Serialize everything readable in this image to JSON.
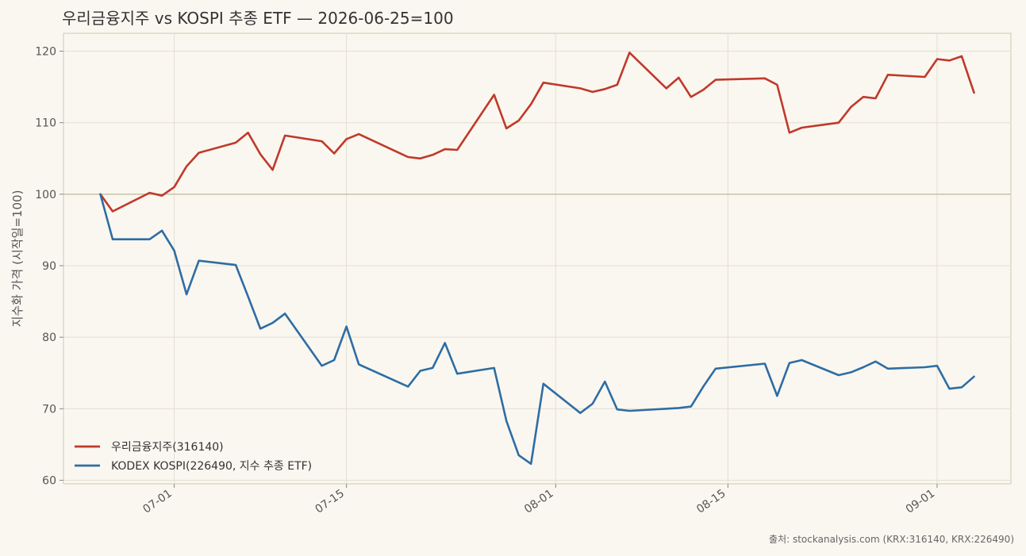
{
  "chart_data": {
    "type": "line",
    "title": "우리금융지주 vs KOSPI 추종 ETF — 2026-06-25=100",
    "xlabel": "",
    "ylabel": "지수화 가격 (시작일=100)",
    "ylim": [
      59.5,
      122.5
    ],
    "yticks": [
      60,
      70,
      80,
      90,
      100,
      110,
      120
    ],
    "xticks": [
      {
        "label": "07-01",
        "date": "2026-07-01"
      },
      {
        "label": "07-15",
        "date": "2026-07-15"
      },
      {
        "label": "08-01",
        "date": "2026-08-01"
      },
      {
        "label": "08-15",
        "date": "2026-08-15"
      },
      {
        "label": "09-01",
        "date": "2026-09-01"
      }
    ],
    "xlim": [
      "2026-06-22",
      "2026-09-07"
    ],
    "reference_line": 100,
    "grid": true,
    "legend_position": "lower-left",
    "source": "출처: stockanalysis.com (KRX:316140, KRX:226490)",
    "x": [
      "2026-06-25",
      "2026-06-26",
      "2026-06-29",
      "2026-06-30",
      "2026-07-01",
      "2026-07-02",
      "2026-07-03",
      "2026-07-06",
      "2026-07-07",
      "2026-07-08",
      "2026-07-09",
      "2026-07-10",
      "2026-07-13",
      "2026-07-14",
      "2026-07-15",
      "2026-07-16",
      "2026-07-20",
      "2026-07-21",
      "2026-07-22",
      "2026-07-23",
      "2026-07-24",
      "2026-07-27",
      "2026-07-28",
      "2026-07-29",
      "2026-07-30",
      "2026-07-31",
      "2026-08-03",
      "2026-08-04",
      "2026-08-05",
      "2026-08-06",
      "2026-08-07",
      "2026-08-10",
      "2026-08-11",
      "2026-08-12",
      "2026-08-13",
      "2026-08-14",
      "2026-08-18",
      "2026-08-19",
      "2026-08-20",
      "2026-08-21",
      "2026-08-24",
      "2026-08-25",
      "2026-08-26",
      "2026-08-27",
      "2026-08-28",
      "2026-08-31",
      "2026-09-01",
      "2026-09-02",
      "2026-09-03",
      "2026-09-04"
    ],
    "series": [
      {
        "name": "우리금융지주(316140)",
        "color": "#c0392b",
        "values": [
          100.0,
          97.6,
          100.2,
          99.8,
          101.0,
          103.9,
          105.8,
          107.2,
          108.6,
          105.6,
          103.4,
          108.2,
          107.4,
          105.7,
          107.7,
          108.4,
          105.2,
          105.0,
          105.5,
          106.3,
          106.2,
          113.9,
          109.2,
          110.3,
          112.6,
          115.6,
          114.8,
          114.3,
          114.7,
          115.3,
          119.8,
          114.8,
          116.3,
          113.6,
          114.6,
          116.0,
          116.2,
          115.3,
          108.6,
          109.3,
          110.0,
          112.2,
          113.6,
          113.4,
          116.7,
          116.4,
          118.9,
          118.7,
          119.3,
          114.2
        ]
      },
      {
        "name": "KODEX KOSPI(226490, 지수 추종 ETF)",
        "color": "#2e6da4",
        "values": [
          100.0,
          93.7,
          93.7,
          94.9,
          92.1,
          86.0,
          90.7,
          90.1,
          85.7,
          81.2,
          82.0,
          83.3,
          76.0,
          76.8,
          81.5,
          76.2,
          73.1,
          75.3,
          75.7,
          79.2,
          74.9,
          75.7,
          68.3,
          63.5,
          62.3,
          73.5,
          69.4,
          70.7,
          73.8,
          69.9,
          69.7,
          70.0,
          70.1,
          70.3,
          73.1,
          75.6,
          76.3,
          71.8,
          76.4,
          76.8,
          74.7,
          75.1,
          75.8,
          76.6,
          75.6,
          75.8,
          76.0,
          72.8,
          73.0,
          74.5
        ]
      }
    ]
  }
}
